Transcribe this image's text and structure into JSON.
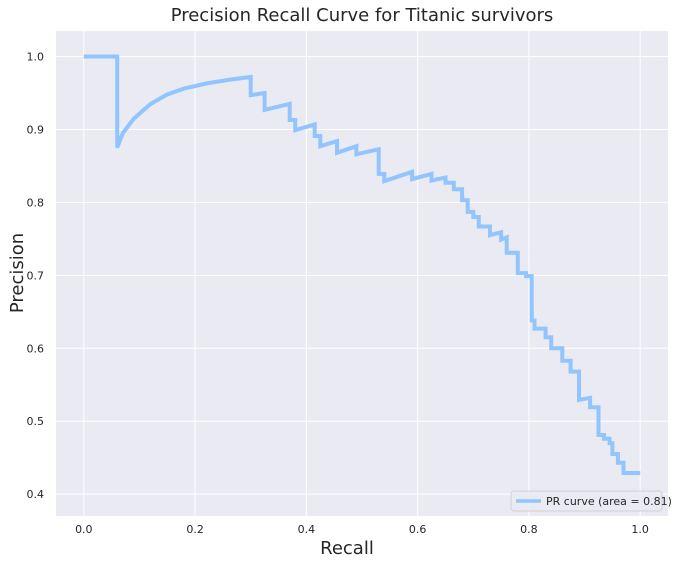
{
  "chart_data": {
    "type": "line",
    "title": "Precision Recall Curve for Titanic survivors",
    "xlabel": "Recall",
    "ylabel": "Precision",
    "xlim": [
      -0.05,
      1.05
    ],
    "ylim": [
      0.37,
      1.035
    ],
    "xticks": [
      0.0,
      0.2,
      0.4,
      0.6,
      0.8,
      1.0
    ],
    "xtick_labels": [
      "0.0",
      "0.2",
      "0.4",
      "0.6",
      "0.8",
      "1.0"
    ],
    "yticks": [
      0.4,
      0.5,
      0.6,
      0.7,
      0.8,
      0.9,
      1.0
    ],
    "ytick_labels": [
      "0.4",
      "0.5",
      "0.6",
      "0.7",
      "0.8",
      "0.9",
      "1.0"
    ],
    "grid": true,
    "legend_position": "lower-right",
    "colors": {
      "background": "#eaeaf2",
      "grid": "#ffffff",
      "line": "#92c5fe",
      "text": "#262626"
    },
    "series": [
      {
        "name": "PR curve (area = 0.81)",
        "x": [
          0.0,
          0.06,
          0.06,
          0.07,
          0.09,
          0.12,
          0.15,
          0.18,
          0.22,
          0.26,
          0.3,
          0.3,
          0.325,
          0.325,
          0.37,
          0.37,
          0.38,
          0.38,
          0.415,
          0.415,
          0.425,
          0.425,
          0.455,
          0.455,
          0.49,
          0.49,
          0.53,
          0.53,
          0.54,
          0.54,
          0.59,
          0.59,
          0.625,
          0.625,
          0.65,
          0.65,
          0.665,
          0.665,
          0.68,
          0.68,
          0.69,
          0.69,
          0.7,
          0.7,
          0.71,
          0.71,
          0.73,
          0.73,
          0.75,
          0.75,
          0.76,
          0.76,
          0.78,
          0.78,
          0.795,
          0.795,
          0.805,
          0.805,
          0.81,
          0.81,
          0.83,
          0.83,
          0.84,
          0.84,
          0.86,
          0.86,
          0.875,
          0.875,
          0.89,
          0.89,
          0.91,
          0.91,
          0.925,
          0.925,
          0.935,
          0.935,
          0.945,
          0.945,
          0.95,
          0.95,
          0.96,
          0.96,
          0.97,
          0.97,
          1.0
        ],
        "y": [
          1.0,
          1.0,
          0.875,
          0.895,
          0.915,
          0.935,
          0.948,
          0.956,
          0.963,
          0.968,
          0.972,
          0.947,
          0.95,
          0.927,
          0.935,
          0.913,
          0.913,
          0.899,
          0.907,
          0.891,
          0.891,
          0.877,
          0.884,
          0.868,
          0.877,
          0.866,
          0.873,
          0.839,
          0.839,
          0.829,
          0.842,
          0.832,
          0.839,
          0.83,
          0.834,
          0.827,
          0.827,
          0.818,
          0.818,
          0.803,
          0.803,
          0.787,
          0.787,
          0.78,
          0.78,
          0.767,
          0.767,
          0.755,
          0.759,
          0.749,
          0.752,
          0.731,
          0.731,
          0.703,
          0.703,
          0.699,
          0.699,
          0.638,
          0.638,
          0.627,
          0.627,
          0.615,
          0.615,
          0.6,
          0.6,
          0.583,
          0.583,
          0.568,
          0.568,
          0.529,
          0.532,
          0.519,
          0.519,
          0.481,
          0.481,
          0.476,
          0.476,
          0.47,
          0.47,
          0.455,
          0.455,
          0.443,
          0.443,
          0.429,
          0.429
        ]
      }
    ]
  }
}
